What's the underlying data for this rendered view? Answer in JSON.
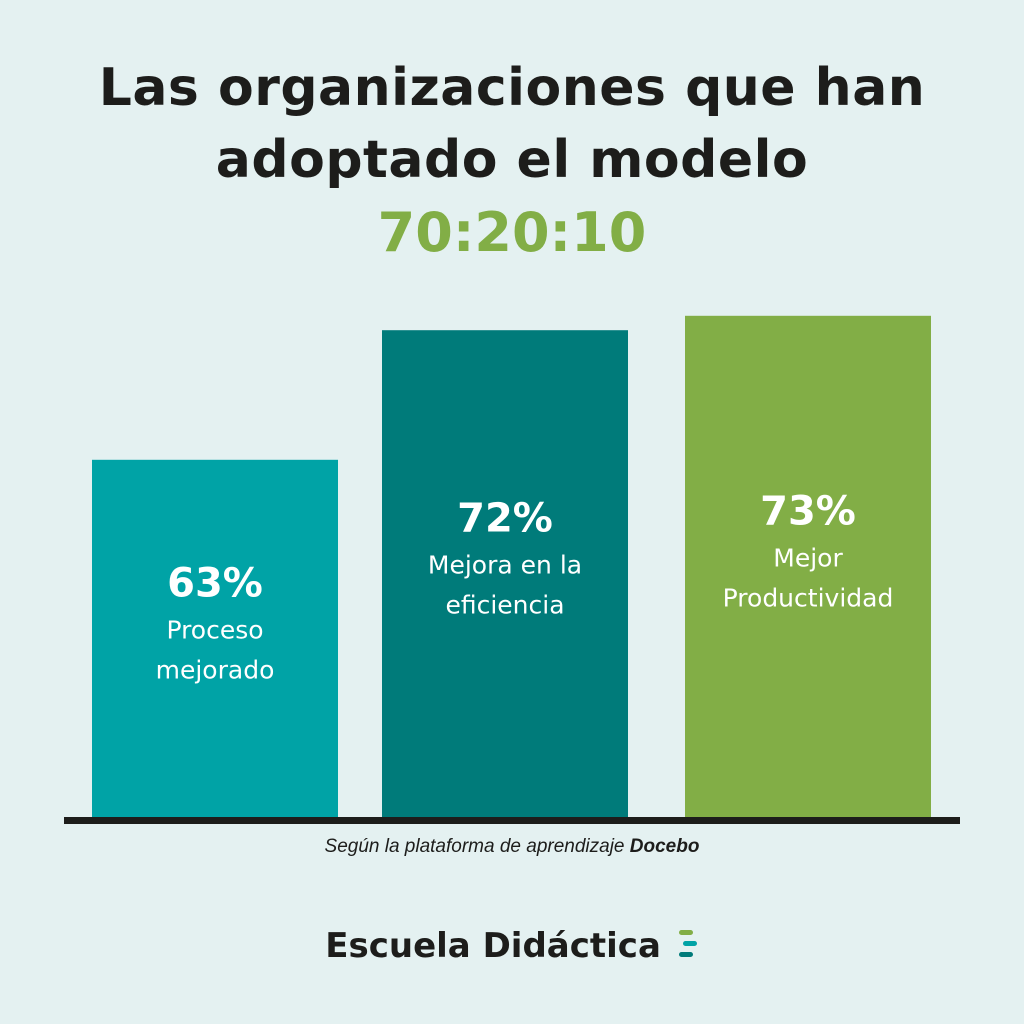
{
  "title": {
    "line1": "Las organizaciones que han",
    "line2": "adoptado el modelo",
    "accent": "70:20:10"
  },
  "chart_data": {
    "type": "bar",
    "categories": [
      "Proceso mejorado",
      "Mejora en la eficiencia",
      "Mejor Productividad"
    ],
    "values": [
      63,
      72,
      73
    ],
    "value_labels": [
      "63%",
      "72%",
      "73%"
    ],
    "label_lines": [
      [
        "Proceso",
        "mejorado"
      ],
      [
        "Mejora en la",
        "eficiencia"
      ],
      [
        "Mejor",
        "Productividad"
      ]
    ],
    "colors": [
      "#00a3a6",
      "#007b7a",
      "#82ae46"
    ],
    "title": "",
    "xlabel": "",
    "ylabel": "",
    "grid": false,
    "legend": "none"
  },
  "source": {
    "prefix": "Según la plataforma de aprendizaje ",
    "name": "Docebo"
  },
  "brand": {
    "name": "Escuela Didáctica",
    "mark_colors": [
      "#82ae46",
      "#00a3a6",
      "#007b7a"
    ]
  },
  "colors": {
    "background": "#e4f1f1",
    "title": "#1d1d1b",
    "accent": "#82ae46",
    "baseline": "#1d1d1b"
  }
}
